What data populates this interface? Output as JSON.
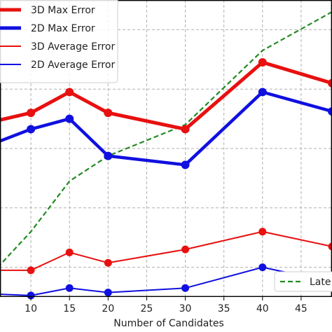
{
  "chart_data": {
    "type": "line",
    "xlabel": "Number of Candidates",
    "x_ticks": [
      10,
      15,
      20,
      25,
      30,
      35,
      40,
      45
    ],
    "xlim": [
      6,
      49
    ],
    "ylim": [
      0,
      100
    ],
    "grid": true,
    "legend_placement": "top-left",
    "x": [
      5,
      10,
      15,
      20,
      30,
      40,
      49
    ],
    "series": [
      {
        "name": "3D Max Error",
        "values": [
          59.0,
          62.0,
          69.0,
          62.0,
          56.5,
          79.0,
          72.0
        ],
        "color": "#e81010",
        "width": 5
      },
      {
        "name": "2D Max Error",
        "values": [
          51.5,
          56.5,
          60.0,
          47.5,
          44.5,
          69.0,
          62.5
        ],
        "color": "#1010e0",
        "width": 4.5
      },
      {
        "name": "3D Average Error",
        "values": [
          9.0,
          9.0,
          15.0,
          11.5,
          16.0,
          22.0,
          17.0
        ],
        "color": "#e81010",
        "width": 2
      },
      {
        "name": "2D Average Error",
        "values": [
          1.0,
          0.5,
          3.0,
          1.5,
          3.0,
          10.0,
          5.0
        ],
        "color": "#1010e0",
        "width": 2
      }
    ],
    "extra_series": {
      "name": "Late",
      "x": [
        5,
        10,
        15,
        20,
        30,
        40,
        49
      ],
      "values": [
        8.0,
        22.0,
        39.0,
        47.5,
        58.0,
        83.0,
        96.0
      ],
      "color": "#228b22",
      "style": "dashed"
    }
  }
}
